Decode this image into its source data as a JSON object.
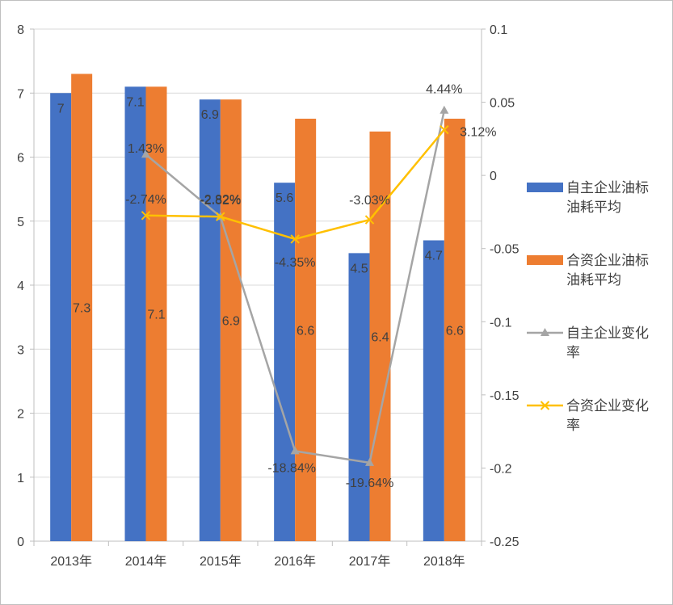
{
  "chart_data": {
    "type": "bar",
    "categories": [
      "2013年",
      "2014年",
      "2015年",
      "2016年",
      "2017年",
      "2018年"
    ],
    "series": [
      {
        "name": "自主企业油标油耗平均",
        "legend_lines": [
          "自主企业油标",
          "油耗平均"
        ],
        "kind": "bar",
        "axis": "primary",
        "color": "#4472c4",
        "values": [
          7,
          7.1,
          6.9,
          5.6,
          4.5,
          4.7
        ],
        "labels": [
          "7",
          "7.1",
          "6.9",
          "5.6",
          "4.5",
          "4.7"
        ]
      },
      {
        "name": "合资企业油标油耗平均",
        "legend_lines": [
          "合资企业油标",
          "油耗平均"
        ],
        "kind": "bar",
        "axis": "primary",
        "color": "#ed7d31",
        "values": [
          7.3,
          7.1,
          6.9,
          6.6,
          6.4,
          6.6
        ],
        "labels": [
          "7.3",
          "7.1",
          "6.9",
          "6.6",
          "6.4",
          "6.6"
        ]
      },
      {
        "name": "自主企业变化率",
        "legend_lines": [
          "自主企业变化",
          "率"
        ],
        "kind": "line",
        "marker": "triangle",
        "axis": "secondary",
        "color": "#a5a5a5",
        "values": [
          null,
          0.0143,
          -0.0282,
          -0.1884,
          -0.1964,
          0.0444
        ],
        "labels": [
          null,
          "1.43%",
          "-2.82%",
          "-18.84%",
          "-19.64%",
          "4.44%"
        ]
      },
      {
        "name": "合资企业变化率",
        "legend_lines": [
          "合资企业变化",
          "率"
        ],
        "kind": "line",
        "marker": "x",
        "axis": "secondary",
        "color": "#ffc000",
        "values": [
          null,
          -0.0274,
          -0.0282,
          -0.0435,
          -0.0303,
          0.0312
        ],
        "labels": [
          null,
          "-2.74%",
          "-2.82%",
          "-4.35%",
          "-3.03%",
          "3.12%"
        ]
      }
    ],
    "y_axis": {
      "range": [
        0,
        8
      ],
      "ticks": [
        "0",
        "1",
        "2",
        "3",
        "4",
        "5",
        "6",
        "7",
        "8"
      ]
    },
    "y2_axis": {
      "range": [
        -0.25,
        0.1
      ],
      "ticks": [
        "-0.25",
        "-0.2",
        "-0.15",
        "-0.1",
        "-0.05",
        "0",
        "0.05",
        "0.1"
      ]
    },
    "grid": true,
    "legend_position": "right"
  }
}
